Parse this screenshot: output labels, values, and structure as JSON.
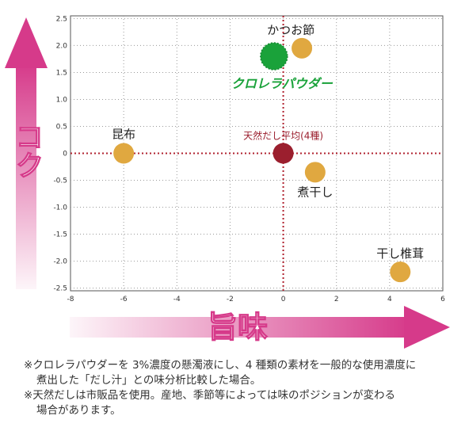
{
  "chart_data": {
    "type": "scatter",
    "x_ticks": [
      -8,
      -6,
      -4,
      -2,
      0,
      2,
      4,
      6
    ],
    "x_tick_labels": [
      "-8",
      "-6",
      "-4",
      "-2",
      "0",
      "2",
      "4",
      "6"
    ],
    "y_ticks": [
      2.5,
      2.0,
      1.5,
      1.0,
      0.5,
      0,
      -0.5,
      -1.0,
      -1.5,
      -2.0,
      -2.5
    ],
    "y_tick_labels": [
      "2.5",
      "2.0",
      "1.5",
      "1.0",
      "0.5",
      "0",
      "-0.5",
      "-1.0",
      "-1.5",
      "-2.0",
      "-2.5"
    ],
    "xlim": [
      -8,
      6
    ],
    "ylim": [
      -2.55,
      2.55
    ],
    "xlabel": "旨味",
    "ylabel": "コク",
    "grid": true,
    "colors": {
      "ingredient": "#e0a840",
      "highlight": "#1aa23a",
      "average": "#9b1f2e",
      "arrow": "#d63a8a",
      "crosshair": "#b0222f"
    },
    "points": [
      {
        "label": "かつお節",
        "x": 0.7,
        "y": 1.95,
        "kind": "ingredient"
      },
      {
        "label": "クロレラパウダー",
        "x": -0.35,
        "y": 1.8,
        "kind": "highlight"
      },
      {
        "label": "昆布",
        "x": -6.0,
        "y": 0.0,
        "kind": "ingredient"
      },
      {
        "label": "天然だし平均(4種)",
        "x": 0.0,
        "y": 0.0,
        "kind": "average"
      },
      {
        "label": "煮干し",
        "x": 1.2,
        "y": -0.35,
        "kind": "ingredient"
      },
      {
        "label": "干し椎茸",
        "x": 4.4,
        "y": -2.2,
        "kind": "ingredient"
      }
    ]
  },
  "notes": [
    {
      "line1": "※クロレラパウダーを 3%濃度の懸濁液にし、4 種類の素材を一般的な使用濃度に",
      "line2": "煮出した「だし汁」との味分析比較した場合。"
    },
    {
      "line1": "※天然だしは市販品を使用。産地、季節等によっては味のポジションが変わる",
      "line2": "場合があります。"
    }
  ]
}
